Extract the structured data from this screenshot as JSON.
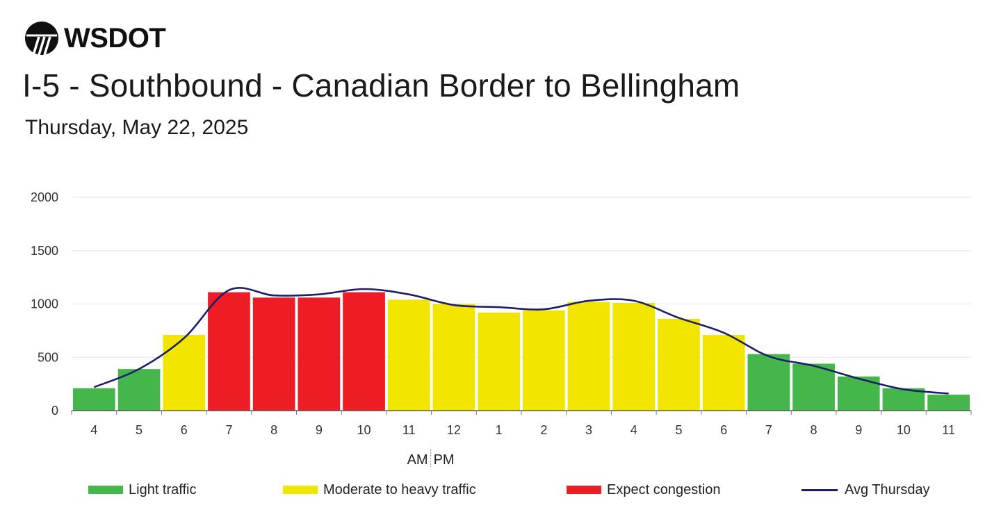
{
  "header": {
    "logo_text": "WSDOT",
    "title": "I-5 - Southbound - Canadian Border to Bellingham",
    "subtitle": "Thursday, May 22, 2025"
  },
  "colors": {
    "light": "#45b649",
    "moderate": "#f2e600",
    "congestion": "#ee1c25",
    "avg_line": "#1b1f6e",
    "grid": "#e6e6e6"
  },
  "chart_data": {
    "type": "bar",
    "categories": [
      "4",
      "5",
      "6",
      "7",
      "8",
      "9",
      "10",
      "11",
      "12",
      "1",
      "2",
      "3",
      "4",
      "5",
      "6",
      "7",
      "8",
      "9",
      "10",
      "11"
    ],
    "values": [
      210,
      390,
      710,
      1110,
      1060,
      1060,
      1110,
      1040,
      1000,
      920,
      940,
      1020,
      1010,
      860,
      710,
      530,
      440,
      320,
      210,
      150
    ],
    "levels": [
      "light",
      "light",
      "moderate",
      "congestion",
      "congestion",
      "congestion",
      "congestion",
      "moderate",
      "moderate",
      "moderate",
      "moderate",
      "moderate",
      "moderate",
      "moderate",
      "moderate",
      "light",
      "light",
      "light",
      "light",
      "light"
    ],
    "series": [
      {
        "name": "Avg Thursday",
        "type": "line",
        "values": [
          220,
          390,
          680,
          1130,
          1080,
          1090,
          1140,
          1090,
          990,
          970,
          950,
          1030,
          1030,
          870,
          730,
          510,
          420,
          300,
          200,
          160
        ]
      }
    ],
    "ylim": [
      0,
      2000
    ],
    "yticks": [
      0,
      500,
      1000,
      1500,
      2000
    ],
    "grid": true,
    "axis_note": "AM|PM",
    "legend": [
      {
        "key": "light",
        "label": "Light traffic"
      },
      {
        "key": "moderate",
        "label": "Moderate to heavy traffic"
      },
      {
        "key": "congestion",
        "label": "Expect congestion"
      },
      {
        "key": "avg_line",
        "label": "Avg Thursday"
      }
    ],
    "legend_position": "bottom"
  }
}
